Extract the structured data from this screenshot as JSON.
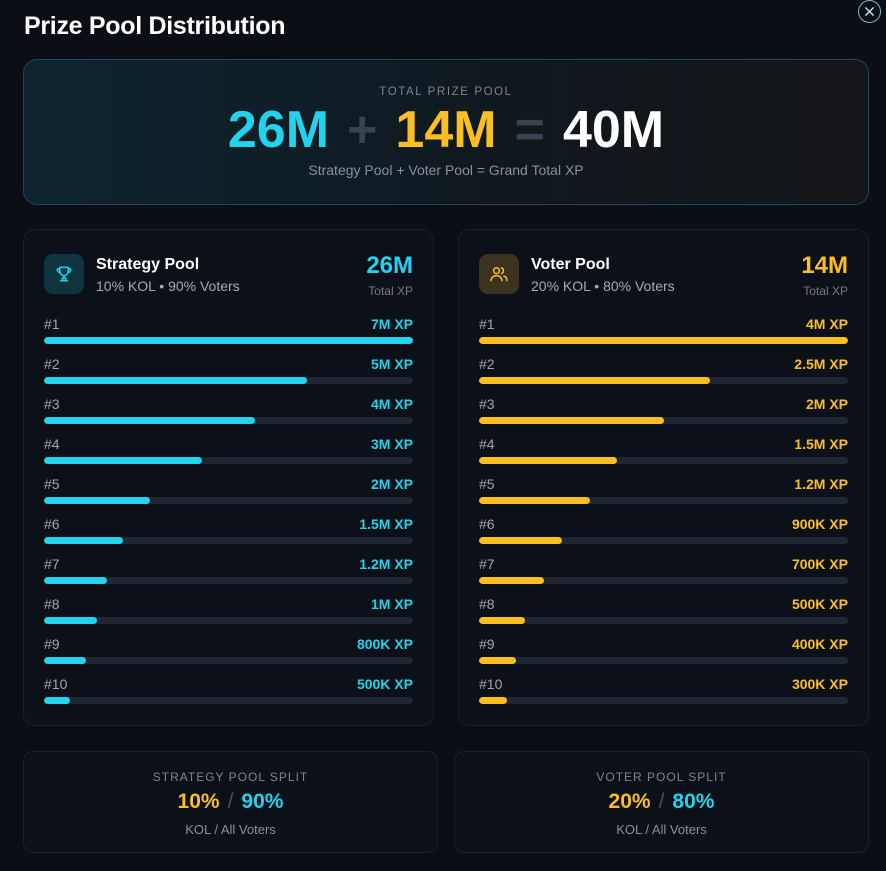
{
  "title": "Prize Pool Distribution",
  "total": {
    "label": "TOTAL PRIZE POOL",
    "strategy": "26M",
    "plus": "+",
    "voter": "14M",
    "equals": "=",
    "grand": "40M",
    "subtitle": "Strategy Pool + Voter Pool = Grand Total XP"
  },
  "strategy_pool": {
    "name": "Strategy Pool",
    "desc": "10% KOL • 90% Voters",
    "total": "26M",
    "total_label": "Total XP",
    "icon": "trophy-icon",
    "accent": "#22d3ee",
    "ranks": [
      {
        "rank": "#1",
        "value": "7M XP",
        "fill": 1.0
      },
      {
        "rank": "#2",
        "value": "5M XP",
        "fill": 0.714
      },
      {
        "rank": "#3",
        "value": "4M XP",
        "fill": 0.571
      },
      {
        "rank": "#4",
        "value": "3M XP",
        "fill": 0.429
      },
      {
        "rank": "#5",
        "value": "2M XP",
        "fill": 0.286
      },
      {
        "rank": "#6",
        "value": "1.5M XP",
        "fill": 0.214
      },
      {
        "rank": "#7",
        "value": "1.2M XP",
        "fill": 0.171
      },
      {
        "rank": "#8",
        "value": "1M XP",
        "fill": 0.143
      },
      {
        "rank": "#9",
        "value": "800K XP",
        "fill": 0.114
      },
      {
        "rank": "#10",
        "value": "500K XP",
        "fill": 0.071
      }
    ]
  },
  "voter_pool": {
    "name": "Voter Pool",
    "desc": "20% KOL • 80% Voters",
    "total": "14M",
    "total_label": "Total XP",
    "icon": "users-icon",
    "accent": "#fbbf24",
    "ranks": [
      {
        "rank": "#1",
        "value": "4M XP",
        "fill": 1.0
      },
      {
        "rank": "#2",
        "value": "2.5M XP",
        "fill": 0.625
      },
      {
        "rank": "#3",
        "value": "2M XP",
        "fill": 0.5
      },
      {
        "rank": "#4",
        "value": "1.5M XP",
        "fill": 0.375
      },
      {
        "rank": "#5",
        "value": "1.2M XP",
        "fill": 0.3
      },
      {
        "rank": "#6",
        "value": "900K XP",
        "fill": 0.225
      },
      {
        "rank": "#7",
        "value": "700K XP",
        "fill": 0.175
      },
      {
        "rank": "#8",
        "value": "500K XP",
        "fill": 0.125
      },
      {
        "rank": "#9",
        "value": "400K XP",
        "fill": 0.1
      },
      {
        "rank": "#10",
        "value": "300K XP",
        "fill": 0.075
      }
    ]
  },
  "strategy_split": {
    "label": "STRATEGY POOL SPLIT",
    "kol": "10%",
    "slash": "/",
    "voters": "90%",
    "sub": "KOL / All Voters"
  },
  "voter_split": {
    "label": "VOTER POOL SPLIT",
    "kol": "20%",
    "slash": "/",
    "voters": "80%",
    "sub": "KOL / All Voters"
  }
}
